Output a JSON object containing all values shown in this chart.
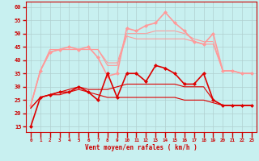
{
  "xlabel": "Vent moyen/en rafales ( km/h )",
  "bg_color": "#c8f0f0",
  "grid_color": "#b0d0d0",
  "xlim": [
    -0.5,
    23.5
  ],
  "ylim": [
    13,
    62
  ],
  "yticks": [
    15,
    20,
    25,
    30,
    35,
    40,
    45,
    50,
    55,
    60
  ],
  "xticks": [
    0,
    1,
    2,
    3,
    4,
    5,
    6,
    7,
    8,
    9,
    10,
    11,
    12,
    13,
    14,
    15,
    16,
    17,
    18,
    19,
    20,
    21,
    22,
    23
  ],
  "series": [
    {
      "x": [
        0,
        1,
        2,
        3,
        4,
        5,
        6,
        7,
        8,
        9,
        10,
        11,
        12,
        13,
        14,
        15,
        16,
        17,
        18,
        19,
        20,
        21,
        22,
        23
      ],
      "y": [
        15,
        26,
        27,
        28,
        28,
        30,
        28,
        25,
        35,
        26,
        35,
        35,
        32,
        38,
        37,
        35,
        31,
        31,
        35,
        25,
        23,
        23,
        23,
        23
      ],
      "color": "#dd0000",
      "marker": "D",
      "markersize": 2.0,
      "linewidth": 1.2,
      "zorder": 5
    },
    {
      "x": [
        0,
        1,
        2,
        3,
        4,
        5,
        6,
        7,
        8,
        9,
        10,
        11,
        12,
        13,
        14,
        15,
        16,
        17,
        18,
        19,
        20,
        21,
        22,
        23
      ],
      "y": [
        22,
        26,
        27,
        27,
        28,
        29,
        28,
        27,
        26,
        26,
        26,
        26,
        26,
        26,
        26,
        26,
        25,
        25,
        25,
        24,
        23,
        23,
        23,
        23
      ],
      "color": "#dd0000",
      "marker": null,
      "markersize": 0,
      "linewidth": 0.8,
      "zorder": 4
    },
    {
      "x": [
        0,
        1,
        2,
        3,
        4,
        5,
        6,
        7,
        8,
        9,
        10,
        11,
        12,
        13,
        14,
        15,
        16,
        17,
        18,
        19,
        20,
        21,
        22,
        23
      ],
      "y": [
        22,
        26,
        27,
        28,
        29,
        30,
        29,
        29,
        29,
        30,
        31,
        31,
        31,
        31,
        31,
        31,
        30,
        30,
        30,
        25,
        23,
        23,
        23,
        23
      ],
      "color": "#dd0000",
      "marker": null,
      "markersize": 0,
      "linewidth": 0.8,
      "zorder": 3
    },
    {
      "x": [
        0,
        1,
        2,
        3,
        4,
        5,
        6,
        7,
        8,
        9,
        10,
        11,
        12,
        13,
        14,
        15,
        16,
        17,
        18,
        19,
        20,
        21,
        22,
        23
      ],
      "y": [
        23,
        36,
        43,
        44,
        45,
        44,
        45,
        41,
        34,
        35,
        52,
        51,
        53,
        54,
        58,
        54,
        51,
        47,
        46,
        50,
        36,
        36,
        35,
        35
      ],
      "color": "#ff9999",
      "marker": "D",
      "markersize": 2.0,
      "linewidth": 1.2,
      "zorder": 2
    },
    {
      "x": [
        0,
        1,
        2,
        3,
        4,
        5,
        6,
        7,
        8,
        9,
        10,
        11,
        12,
        13,
        14,
        15,
        16,
        17,
        18,
        19,
        20,
        21,
        22,
        23
      ],
      "y": [
        23,
        36,
        44,
        44,
        44,
        44,
        44,
        44,
        38,
        38,
        49,
        48,
        48,
        48,
        48,
        48,
        48,
        47,
        46,
        46,
        36,
        36,
        35,
        35
      ],
      "color": "#ff9999",
      "marker": null,
      "markersize": 0,
      "linewidth": 0.8,
      "zorder": 1
    },
    {
      "x": [
        0,
        1,
        2,
        3,
        4,
        5,
        6,
        7,
        8,
        9,
        10,
        11,
        12,
        13,
        14,
        15,
        16,
        17,
        18,
        19,
        20,
        21,
        22,
        23
      ],
      "y": [
        23,
        36,
        43,
        44,
        44,
        44,
        44,
        44,
        39,
        39,
        50,
        50,
        50,
        51,
        51,
        51,
        50,
        48,
        47,
        47,
        36,
        36,
        35,
        35
      ],
      "color": "#ff9999",
      "marker": null,
      "markersize": 0,
      "linewidth": 0.8,
      "zorder": 0
    }
  ]
}
